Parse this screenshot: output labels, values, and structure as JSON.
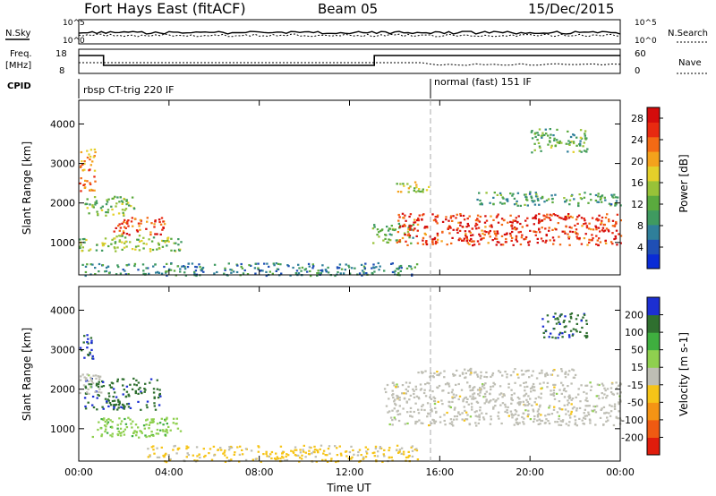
{
  "header": {
    "title": "Fort Hays East (fitACF)",
    "beam": "Beam 05",
    "date": "15/Dec/2015"
  },
  "strip_labels": {
    "nsky": "N.Sky",
    "nsearch": "N.Search",
    "freq": "Freq.",
    "freq_unit": "[MHz]",
    "nave": "Nave",
    "cpid": "CPID",
    "noise_ticks_left": [
      "10^5",
      "10^0"
    ],
    "noise_ticks_right": [
      "10^5",
      "10^0"
    ],
    "freq_ticks": [
      "18",
      "8"
    ],
    "nave_ticks": [
      "60",
      "0"
    ]
  },
  "cpid_segments": [
    {
      "label": "rbsp CT-trig 220 IF",
      "start_hour": 0
    },
    {
      "label": "normal (fast) 151 IF",
      "start_hour": 15.6
    }
  ],
  "chart_data": [
    {
      "type": "heatmap",
      "name": "power",
      "ylabel": "Slant Range [km]",
      "xlabel": "Time UT",
      "ylim": [
        180,
        4600
      ],
      "yticks": [
        "1000",
        "2000",
        "3000",
        "4000"
      ],
      "xticks": [
        "00:00",
        "04:00",
        "08:00",
        "12:00",
        "16:00",
        "20:00",
        "00:00"
      ],
      "xlim_hours": [
        0,
        24
      ],
      "colorbar": {
        "label": "Power [dB]",
        "ticks": [
          "4",
          "8",
          "12",
          "16",
          "20",
          "24",
          "28"
        ],
        "range": [
          0,
          30
        ],
        "colors": [
          "#0a2bd6",
          "#1f4fb5",
          "#2f7f9a",
          "#3f9a60",
          "#5aaa3e",
          "#98c238",
          "#e4d02a",
          "#f4a21c",
          "#f46a14",
          "#e82a10",
          "#d40c0c"
        ]
      },
      "echo_regions": [
        {
          "t0": 0.0,
          "t1": 0.7,
          "r0": 2800,
          "r1": 3400,
          "power": 22
        },
        {
          "t0": 0.0,
          "t1": 0.7,
          "r0": 2300,
          "r1": 2700,
          "power": 24
        },
        {
          "t0": 0.2,
          "t1": 2.5,
          "r0": 1700,
          "r1": 2200,
          "power": 14
        },
        {
          "t0": 1.5,
          "t1": 3.8,
          "r0": 1200,
          "r1": 1650,
          "power": 24
        },
        {
          "t0": 0.0,
          "t1": 4.5,
          "r0": 800,
          "r1": 1200,
          "power": 14
        },
        {
          "t0": 0.0,
          "t1": 15.0,
          "r0": 180,
          "r1": 500,
          "power": 8
        },
        {
          "t0": 13.0,
          "t1": 14.8,
          "r0": 1000,
          "r1": 1500,
          "power": 12
        },
        {
          "t0": 14.0,
          "t1": 24.0,
          "r0": 950,
          "r1": 1750,
          "power": 26
        },
        {
          "t0": 17.5,
          "t1": 24.0,
          "r0": 1950,
          "r1": 2300,
          "power": 10
        },
        {
          "t0": 20.0,
          "t1": 22.5,
          "r0": 3300,
          "r1": 3900,
          "power": 12
        },
        {
          "t0": 14.0,
          "t1": 15.5,
          "r0": 2300,
          "r1": 2550,
          "power": 16
        }
      ]
    },
    {
      "type": "heatmap",
      "name": "velocity",
      "ylabel": "Slant Range [km]",
      "xlabel": "Time UT",
      "ylim": [
        180,
        4600
      ],
      "yticks": [
        "1000",
        "2000",
        "3000",
        "4000"
      ],
      "xticks": [
        "00:00",
        "04:00",
        "08:00",
        "12:00",
        "16:00",
        "20:00",
        "00:00"
      ],
      "xlim_hours": [
        0,
        24
      ],
      "colorbar": {
        "label": "Velocity [m s-1]",
        "ticks": [
          "200",
          "100",
          "50",
          "15",
          "-15",
          "-50",
          "-100",
          "-200"
        ],
        "range": [
          -250,
          250
        ],
        "colors": [
          "#1c2fd2",
          "#2f6f2f",
          "#3fae3f",
          "#8fd04f",
          "#bebeb4",
          "#f6c418",
          "#f49414",
          "#ef5a12",
          "#e01c0c"
        ]
      },
      "echo_regions": [
        {
          "t0": 0.0,
          "t1": 0.6,
          "r0": 2700,
          "r1": 3400,
          "velocity": 200
        },
        {
          "t0": 0.2,
          "t1": 3.6,
          "r0": 1500,
          "r1": 2300,
          "velocity": 180
        },
        {
          "t0": 0.0,
          "t1": 1.0,
          "r0": 1900,
          "r1": 2400,
          "velocity": 0
        },
        {
          "t0": 0.5,
          "t1": 4.5,
          "r0": 800,
          "r1": 1300,
          "velocity": 60
        },
        {
          "t0": 3.0,
          "t1": 15.0,
          "r0": 180,
          "r1": 600,
          "velocity": -40
        },
        {
          "t0": 13.5,
          "t1": 24.0,
          "r0": 1100,
          "r1": 2200,
          "velocity": 0
        },
        {
          "t0": 15.0,
          "t1": 22.0,
          "r0": 2300,
          "r1": 2550,
          "velocity": 0
        },
        {
          "t0": 20.5,
          "t1": 22.5,
          "r0": 3300,
          "r1": 3950,
          "velocity": 180
        }
      ]
    }
  ]
}
